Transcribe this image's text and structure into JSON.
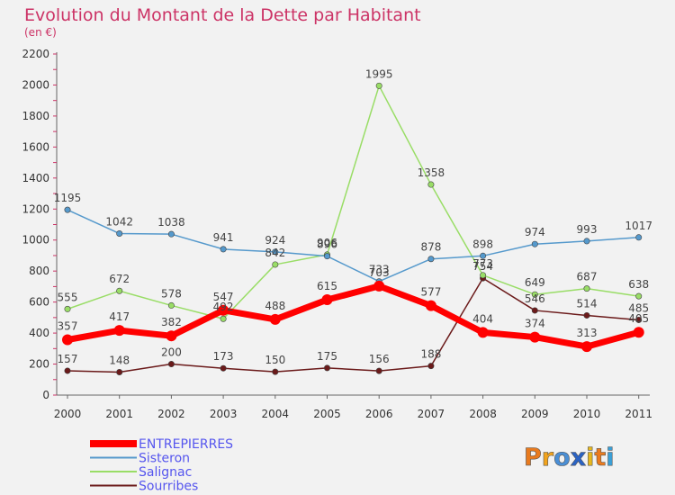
{
  "chart_data": {
    "type": "line",
    "title": "Evolution du Montant de la Dette par Habitant",
    "subtitle": "(en €)",
    "x": [
      "2000",
      "2001",
      "2002",
      "2003",
      "2004",
      "2005",
      "2006",
      "2007",
      "2008",
      "2009",
      "2010",
      "2011"
    ],
    "ylim": [
      0,
      2200
    ],
    "yticks": [
      0,
      200,
      400,
      600,
      800,
      1000,
      1200,
      1400,
      1600,
      1800,
      2000,
      2200
    ],
    "grid": false,
    "legend_position": "bottom-left",
    "series": [
      {
        "name": "Sourribes",
        "color": "#6b1a1a",
        "values": [
          157,
          148,
          200,
          173,
          150,
          175,
          156,
          188,
          754,
          546,
          514,
          485
        ]
      },
      {
        "name": "Salignac",
        "color": "#99dd66",
        "values": [
          555,
          672,
          578,
          492,
          842,
          906,
          1995,
          1358,
          773,
          649,
          687,
          638
        ]
      },
      {
        "name": "Sisteron",
        "color": "#5599cc",
        "values": [
          1195,
          1042,
          1038,
          941,
          924,
          896,
          733,
          878,
          898,
          974,
          993,
          1017
        ]
      },
      {
        "name": "ENTREPIERRES",
        "color": "#ff0000",
        "values": [
          357,
          417,
          382,
          547,
          488,
          615,
          703,
          577,
          404,
          374,
          313,
          405
        ]
      }
    ],
    "legend": [
      "ENTREPIERRES",
      "Sisteron",
      "Salignac",
      "Sourribes"
    ]
  },
  "logo": {
    "text": "Proxiti",
    "letters": [
      "P",
      "r",
      "o",
      "x",
      "i",
      "t",
      "i"
    ],
    "colors": [
      "#e87a1e",
      "#f2a31c",
      "#4a8fd6",
      "#2a63c4",
      "#e8b81e",
      "#ec7b1d",
      "#3aa0d8"
    ]
  },
  "colors": {
    "title": "#cc3366",
    "background": "#f2f2f2"
  }
}
